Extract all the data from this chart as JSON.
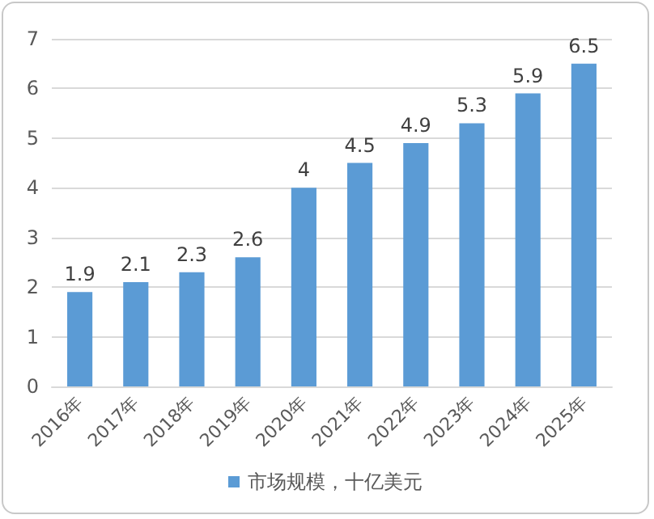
{
  "chart_data": {
    "type": "bar",
    "categories": [
      "2016年",
      "2017年",
      "2018年",
      "2019年",
      "2020年",
      "2021年",
      "2022年",
      "2023年",
      "2024年",
      "2025年"
    ],
    "series": [
      {
        "name": "市场规模，十亿美元",
        "color": "#5b9bd5",
        "values": [
          1.9,
          2.1,
          2.3,
          2.6,
          4,
          4.5,
          4.9,
          5.3,
          5.9,
          6.5
        ]
      }
    ],
    "ylim": [
      0,
      7
    ],
    "yticks": [
      0,
      1,
      2,
      3,
      4,
      5,
      6,
      7
    ],
    "grid": "y",
    "legend": "bottom",
    "data_labels": true
  }
}
